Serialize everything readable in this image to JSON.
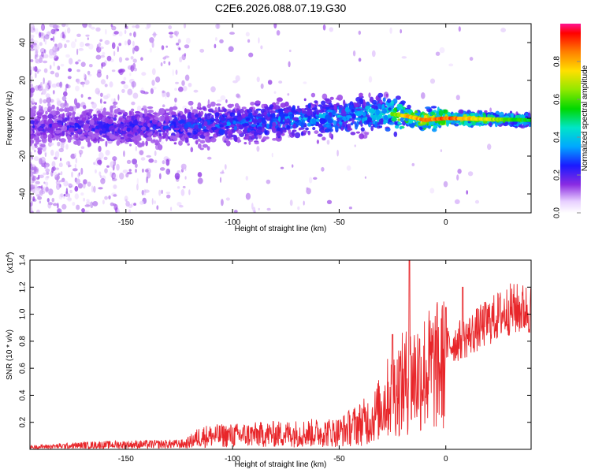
{
  "figure": {
    "title": "C2E6.2026.088.07.19.G30"
  },
  "chart_data": [
    {
      "type": "heatmap",
      "xlabel": "Height of straight line (km)",
      "ylabel": "Frequency (Hz)",
      "xlim": [
        -195,
        40
      ],
      "ylim": [
        -50,
        50
      ],
      "xticks": [
        -150,
        -100,
        -50,
        0
      ],
      "yticks": [
        -40,
        -20,
        0,
        20,
        40
      ],
      "colorbar": {
        "label": "Normalized spectral amplitude",
        "range": [
          0,
          1
        ],
        "ticks": [
          0.0,
          0.2,
          0.4,
          0.6,
          0.8
        ]
      },
      "ridge": {
        "description_points": [
          {
            "x": -190,
            "y": -4
          },
          {
            "x": -150,
            "y": -5
          },
          {
            "x": -100,
            "y": -3
          },
          {
            "x": -60,
            "y": 0
          },
          {
            "x": -30,
            "y": 3
          },
          {
            "x": -18,
            "y": 1
          },
          {
            "x": -10,
            "y": -1
          },
          {
            "x": 0,
            "y": 0
          },
          {
            "x": 40,
            "y": -1
          }
        ],
        "amplitude_points": [
          {
            "x": -190,
            "v": 0.25
          },
          {
            "x": -130,
            "v": 0.3
          },
          {
            "x": -80,
            "v": 0.4
          },
          {
            "x": -30,
            "v": 0.5
          },
          {
            "x": -18,
            "v": 0.85
          },
          {
            "x": 0,
            "v": 0.95
          },
          {
            "x": 40,
            "v": 0.55
          }
        ]
      }
    },
    {
      "type": "line",
      "xlabel": "Height of straight line (km)",
      "ylabel": "SNR (10 * v/v)",
      "multiplier": "(x10",
      "multiplier_exp": "4",
      "multiplier_close": ")",
      "xlim": [
        -195,
        40
      ],
      "ylim": [
        0,
        1.4
      ],
      "xticks": [
        -150,
        -100,
        -50,
        0
      ],
      "yticks": [
        0.2,
        0.4,
        0.6,
        0.8,
        1.0,
        1.2,
        1.4
      ],
      "series": [
        {
          "color": "#e8262a",
          "envelope": [
            {
              "x": -195,
              "y": 0.02
            },
            {
              "x": -165,
              "y": 0.04
            },
            {
              "x": -122,
              "y": 0.05
            },
            {
              "x": -115,
              "y": 0.12
            },
            {
              "x": -80,
              "y": 0.14
            },
            {
              "x": -50,
              "y": 0.16
            },
            {
              "x": -35,
              "y": 0.28
            },
            {
              "x": -25,
              "y": 0.55
            },
            {
              "x": -15,
              "y": 0.7
            },
            {
              "x": -5,
              "y": 0.78
            },
            {
              "x": 10,
              "y": 0.9
            },
            {
              "x": 20,
              "y": 1.02
            },
            {
              "x": 30,
              "y": 1.12
            },
            {
              "x": 40,
              "y": 1.12
            }
          ],
          "peaks": [
            {
              "x": -17,
              "y": 1.4
            },
            {
              "x": -25,
              "y": 0.85
            },
            {
              "x": 8,
              "y": 1.2
            },
            {
              "x": 0,
              "y": 1.05
            }
          ]
        }
      ]
    }
  ]
}
